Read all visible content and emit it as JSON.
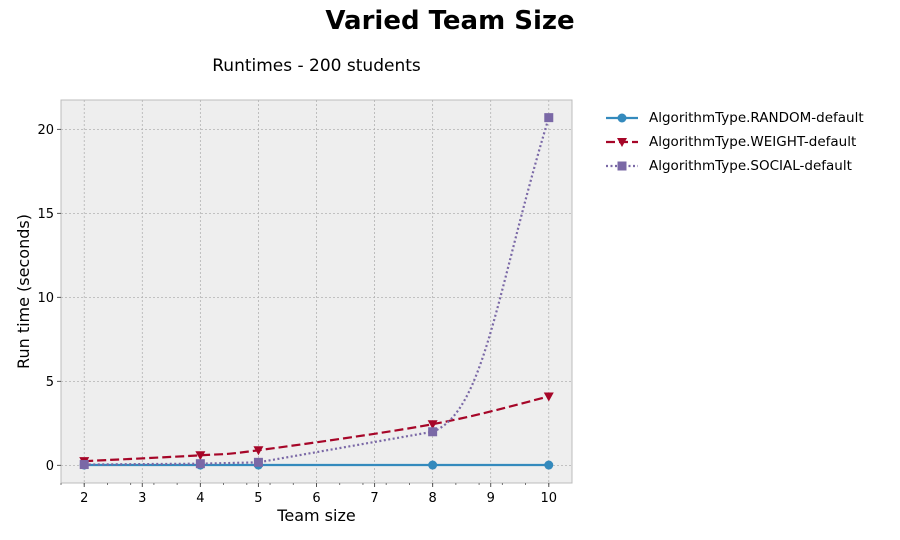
{
  "figure": {
    "suptitle": "Varied Team Size"
  },
  "chart_data": {
    "type": "line",
    "title": "Runtimes - 200 students",
    "xlabel": "Team size",
    "ylabel": "Run time (seconds)",
    "xlim": [
      1.6,
      10.4
    ],
    "ylim": [
      -1.05,
      21.75
    ],
    "xticks": [
      2,
      3,
      4,
      5,
      6,
      7,
      8,
      9,
      10
    ],
    "yticks": [
      0,
      5,
      10,
      15,
      20
    ],
    "grid": true,
    "legend_placement": "outside-right",
    "series": [
      {
        "name": "AlgorithmType.RANDOM-default",
        "color": "#348abd",
        "linestyle": "solid",
        "marker": "circle",
        "x": [
          2,
          4,
          5,
          8,
          10
        ],
        "y": [
          0.02,
          0.02,
          0.02,
          0.02,
          0.02
        ]
      },
      {
        "name": "AlgorithmType.WEIGHT-default",
        "color": "#a60628",
        "linestyle": "dashed",
        "marker": "triangle-down",
        "x": [
          2,
          4,
          5,
          8,
          10
        ],
        "y": [
          0.25,
          0.6,
          0.9,
          2.45,
          4.1
        ]
      },
      {
        "name": "AlgorithmType.SOCIAL-default",
        "color": "#7a68a6",
        "linestyle": "dotted",
        "marker": "square",
        "x": [
          2,
          4,
          5,
          8,
          10
        ],
        "y": [
          0.05,
          0.1,
          0.18,
          2.0,
          20.7
        ]
      }
    ]
  }
}
